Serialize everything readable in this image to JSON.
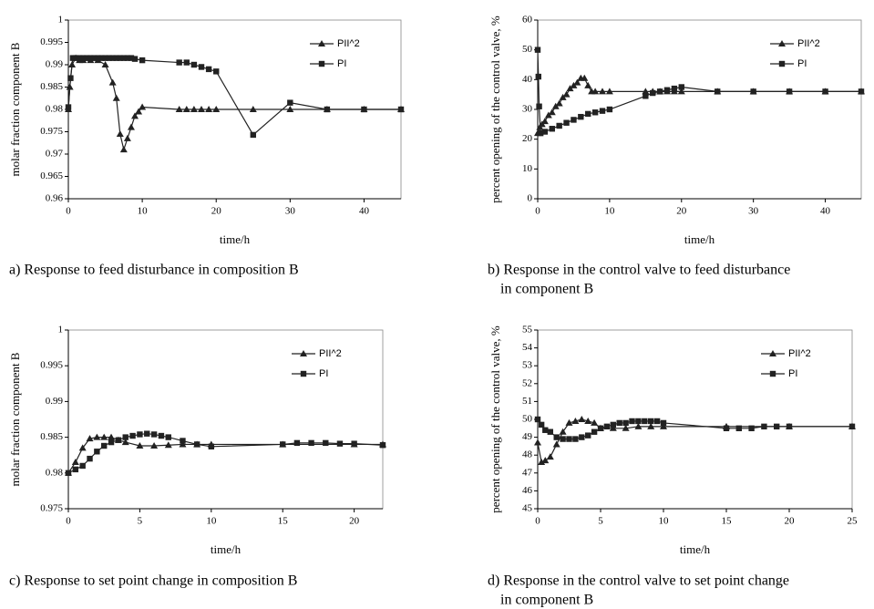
{
  "chart_data": [
    {
      "type": "line",
      "caption": [
        "a) Response to feed disturbance in composition B"
      ],
      "x_label": "time/h",
      "y_label": "molar fraction component B",
      "xlim": [
        0,
        45
      ],
      "xticks": [
        0,
        10,
        20,
        30,
        40
      ],
      "ylim": [
        0.96,
        1
      ],
      "yticks": [
        0.96,
        0.965,
        0.97,
        0.975,
        0.98,
        0.985,
        0.99,
        0.995,
        1
      ],
      "legend": "upper right",
      "series": [
        {
          "name": "PII^2",
          "color": "#222222",
          "marker": "triangle",
          "x": [
            0,
            0.2,
            0.5,
            1,
            1.5,
            2,
            3,
            4,
            5,
            6,
            6.5,
            7,
            7.5,
            8,
            8.5,
            9,
            9.5,
            10,
            15,
            16,
            17,
            18,
            19,
            20,
            25,
            30,
            35,
            40,
            45
          ],
          "values": [
            0.98,
            0.985,
            0.99,
            0.9915,
            0.991,
            0.991,
            0.991,
            0.991,
            0.99,
            0.986,
            0.9825,
            0.9745,
            0.971,
            0.9735,
            0.976,
            0.9785,
            0.9795,
            0.9805,
            0.98,
            0.98,
            0.98,
            0.98,
            0.98,
            0.98,
            0.98,
            0.98,
            0.98,
            0.98,
            0.98
          ]
        },
        {
          "name": "PI",
          "color": "#222222",
          "marker": "square",
          "x": [
            0,
            0.3,
            0.6,
            1,
            1.5,
            2,
            2.5,
            3,
            3.5,
            4,
            4.5,
            5,
            5.5,
            6,
            6.5,
            7,
            7.5,
            8,
            8.5,
            9,
            10,
            15,
            16,
            17,
            18,
            19,
            20,
            25,
            30,
            35,
            40,
            45
          ],
          "values": [
            0.9805,
            0.987,
            0.9915,
            0.9915,
            0.9915,
            0.9915,
            0.9915,
            0.9915,
            0.9915,
            0.9915,
            0.9915,
            0.9915,
            0.9915,
            0.9915,
            0.9915,
            0.9915,
            0.9915,
            0.9915,
            0.9915,
            0.9913,
            0.991,
            0.9905,
            0.9905,
            0.99,
            0.9895,
            0.989,
            0.9885,
            0.9743,
            0.9815,
            0.98,
            0.98,
            0.98
          ]
        }
      ]
    },
    {
      "type": "line",
      "caption": [
        "b) Response in the control valve to feed disturbance",
        "in component B"
      ],
      "x_label": "time/h",
      "y_label": "percent opening of the control valve, %",
      "xlim": [
        0,
        45
      ],
      "xticks": [
        0,
        10,
        20,
        30,
        40
      ],
      "ylim": [
        0,
        60
      ],
      "yticks": [
        0,
        10,
        20,
        30,
        40,
        50,
        60
      ],
      "legend": "upper right",
      "series": [
        {
          "name": "PII^2",
          "color": "#222222",
          "marker": "triangle",
          "x": [
            0,
            0.3,
            0.6,
            1,
            1.5,
            2,
            2.5,
            3,
            3.5,
            4,
            4.5,
            5,
            5.5,
            6,
            6.5,
            7,
            7.5,
            8,
            9,
            10,
            15,
            16,
            17,
            18,
            19,
            20,
            25,
            30,
            35,
            40,
            45
          ],
          "values": [
            22,
            24,
            25,
            26,
            28,
            29,
            31,
            32,
            34,
            35,
            37,
            38,
            39,
            40.5,
            40.5,
            38,
            36,
            36,
            36,
            36,
            36,
            36,
            36,
            36,
            36,
            36,
            36,
            36,
            36,
            36,
            36
          ]
        },
        {
          "name": "PI",
          "color": "#222222",
          "marker": "square",
          "x": [
            0,
            0.1,
            0.2,
            0.4,
            1,
            2,
            3,
            4,
            5,
            6,
            7,
            8,
            9,
            10,
            15,
            16,
            17,
            18,
            19,
            20,
            25,
            30,
            35,
            40,
            45
          ],
          "values": [
            50,
            41,
            31,
            22,
            22.5,
            23.5,
            24.5,
            25.5,
            26.5,
            27.5,
            28.5,
            29,
            29.5,
            30,
            34.5,
            35.5,
            36,
            36.5,
            37,
            37.5,
            36,
            36,
            36,
            36,
            36
          ]
        }
      ]
    },
    {
      "type": "line",
      "caption": [
        "c) Response to set point change in composition B"
      ],
      "x_label": "time/h",
      "y_label": "molar fraction component B",
      "xlim": [
        0,
        22
      ],
      "xticks": [
        0,
        5,
        10,
        15,
        20
      ],
      "ylim": [
        0.975,
        1
      ],
      "yticks": [
        0.975,
        0.98,
        0.985,
        0.99,
        0.995,
        1
      ],
      "legend": "upper right",
      "series": [
        {
          "name": "PII^2",
          "color": "#222222",
          "marker": "triangle",
          "x": [
            0,
            0.5,
            1,
            1.5,
            2,
            2.5,
            3,
            3.5,
            4,
            5,
            6,
            7,
            8,
            9,
            10,
            15,
            20,
            22
          ],
          "values": [
            0.98,
            0.9815,
            0.9835,
            0.9848,
            0.985,
            0.985,
            0.985,
            0.9846,
            0.9843,
            0.9838,
            0.9838,
            0.9839,
            0.984,
            0.984,
            0.984,
            0.984,
            0.984,
            0.984
          ]
        },
        {
          "name": "PI",
          "color": "#222222",
          "marker": "square",
          "x": [
            0,
            0.5,
            1,
            1.5,
            2,
            2.5,
            3,
            3.5,
            4,
            4.5,
            5,
            5.5,
            6,
            6.5,
            7,
            8,
            9,
            10,
            15,
            16,
            17,
            18,
            19,
            20,
            22
          ],
          "values": [
            0.98,
            0.9805,
            0.981,
            0.982,
            0.983,
            0.9838,
            0.9843,
            0.9846,
            0.985,
            0.9852,
            0.9854,
            0.9855,
            0.9854,
            0.9852,
            0.985,
            0.9845,
            0.984,
            0.9837,
            0.984,
            0.9842,
            0.9842,
            0.9842,
            0.9841,
            0.9841,
            0.9839
          ]
        }
      ]
    },
    {
      "type": "line",
      "caption": [
        "d) Response in the control valve to set point change",
        "in component B"
      ],
      "x_label": "time/h",
      "y_label": "percent opening of the control valve, %",
      "xlim": [
        0,
        25
      ],
      "xticks": [
        0,
        5,
        10,
        15,
        20,
        25
      ],
      "ylim": [
        45,
        55
      ],
      "yticks": [
        45,
        46,
        47,
        48,
        49,
        50,
        51,
        52,
        53,
        54,
        55
      ],
      "legend": "upper right",
      "series": [
        {
          "name": "PII^2",
          "color": "#222222",
          "marker": "triangle",
          "x": [
            0,
            0.3,
            0.6,
            1,
            1.5,
            2,
            2.5,
            3,
            3.5,
            4,
            4.5,
            5,
            6,
            7,
            8,
            9,
            10,
            15,
            20,
            25
          ],
          "values": [
            48.7,
            47.6,
            47.7,
            47.9,
            48.6,
            49.3,
            49.8,
            49.9,
            50,
            49.9,
            49.8,
            49.5,
            49.5,
            49.5,
            49.6,
            49.6,
            49.6,
            49.6,
            49.6,
            49.6
          ]
        },
        {
          "name": "PI",
          "color": "#222222",
          "marker": "square",
          "x": [
            0,
            0.3,
            0.6,
            1,
            1.5,
            2,
            2.5,
            3,
            3.5,
            4,
            4.5,
            5,
            5.5,
            6,
            6.5,
            7,
            7.5,
            8,
            8.5,
            9,
            9.5,
            10,
            15,
            16,
            17,
            18,
            19,
            20,
            25
          ],
          "values": [
            50,
            49.7,
            49.4,
            49.3,
            49,
            48.9,
            48.9,
            48.9,
            49,
            49.1,
            49.3,
            49.5,
            49.6,
            49.7,
            49.8,
            49.8,
            49.9,
            49.9,
            49.9,
            49.9,
            49.9,
            49.8,
            49.5,
            49.5,
            49.5,
            49.6,
            49.6,
            49.6,
            49.6
          ]
        }
      ]
    }
  ]
}
